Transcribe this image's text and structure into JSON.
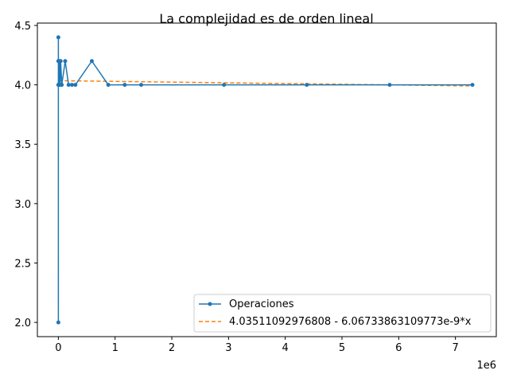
{
  "chart_data": {
    "type": "line",
    "title": "La complejidad es de orden lineal",
    "xlabel": "",
    "ylabel": "",
    "x_offset_label": "1e6",
    "xlim": [
      -370000,
      7720000
    ],
    "ylim": [
      1.88,
      4.52
    ],
    "x_ticks": [
      0,
      1000000,
      2000000,
      3000000,
      4000000,
      5000000,
      6000000,
      7000000
    ],
    "x_tick_labels": [
      "0",
      "1",
      "2",
      "3",
      "4",
      "5",
      "6",
      "7"
    ],
    "y_ticks": [
      2.0,
      2.5,
      3.0,
      3.5,
      4.0,
      4.5
    ],
    "y_tick_labels": [
      "2.0",
      "2.5",
      "3.0",
      "3.5",
      "4.0",
      "4.5"
    ],
    "grid": false,
    "legend_position": "lower-right",
    "series": [
      {
        "name": "Operaciones",
        "color": "#1f77b4",
        "style": "solid-with-dots",
        "x": [
          1,
          10,
          50,
          100,
          500,
          1000,
          2000,
          5000,
          10000,
          20000,
          30000,
          40000,
          60000,
          120000,
          180000,
          240000,
          300000,
          590000,
          880000,
          1170000,
          1460000,
          2920000,
          4380000,
          5840000,
          7300000
        ],
        "y": [
          4.0,
          2.0,
          4.2,
          4.4,
          4.0,
          4.2,
          4.0,
          4.2,
          4.0,
          4.2,
          4.0,
          4.2,
          4.0,
          4.2,
          4.0,
          4.0,
          4.0,
          4.2,
          4.0,
          4.0,
          4.0,
          4.0,
          4.0,
          4.0,
          4.0
        ]
      },
      {
        "name": "4.03511092976808 - 6.06733863109773e-9*x",
        "color": "#ff7f0e",
        "style": "dashed",
        "x": [
          0,
          7300000
        ],
        "y": [
          4.03511092976808,
          3.99081935769
        ]
      }
    ]
  }
}
